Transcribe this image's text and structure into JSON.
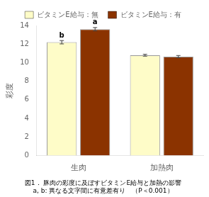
{
  "chart_data": {
    "type": "bar",
    "categories": [
      "生肉",
      "加熱肉"
    ],
    "series": [
      {
        "name": "ビタミンE給与：無",
        "color": "#FEFCC8",
        "values": [
          12.2,
          10.8
        ],
        "errors": [
          0.18,
          0.1
        ]
      },
      {
        "name": "ビタミンE給与：有",
        "color": "#8B3300",
        "values": [
          13.6,
          10.65
        ],
        "errors": [
          0.18,
          0.12
        ]
      }
    ],
    "ylabel": "彩度",
    "ylim": [
      0,
      14
    ],
    "yticks": [
      0,
      2,
      4,
      6,
      8,
      10,
      12,
      14
    ],
    "grid": false,
    "legend": "top",
    "annotations": [
      {
        "text": "b",
        "category": "生肉",
        "series": "ビタミンE給与：無"
      },
      {
        "text": "a",
        "category": "生肉",
        "series": "ビタミンE給与：有"
      }
    ],
    "caption": [
      "図1． 豚肉の彩度に及ぼすビタミンE給与と加熱の影響",
      "a, b: 異なる文字間に有意差有り　（P＜0.001）"
    ]
  }
}
